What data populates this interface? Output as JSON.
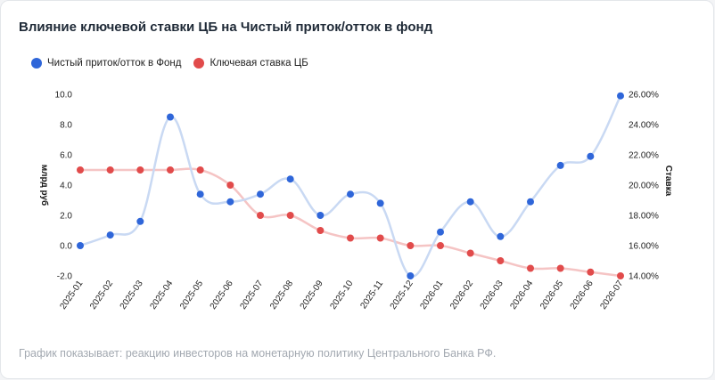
{
  "card": {
    "title": "Влияние ключевой ставки ЦБ на Чистый приток/отток в фонд",
    "footer": "График показывает: реакцию инвесторов на монетарную политику Центрального Банка РФ."
  },
  "colors": {
    "flow": "#2f66d9",
    "flow_line": "#c9d9f3",
    "rate": "#e14b4b",
    "rate_line": "#f5c4c4"
  },
  "chart_data": {
    "type": "line",
    "categories": [
      "2025-01",
      "2025-02",
      "2025-03",
      "2025-04",
      "2025-05",
      "2025-06",
      "2025-07",
      "2025-08",
      "2025-09",
      "2025-10",
      "2025-11",
      "2025-12",
      "2026-01",
      "2026-02",
      "2026-03",
      "2026-04",
      "2026-05",
      "2026-06",
      "2026-07"
    ],
    "series": [
      {
        "name": "Чистый приток/отток в Фонд",
        "axis": "left",
        "values": [
          0.0,
          0.7,
          1.6,
          8.5,
          3.4,
          2.9,
          3.4,
          4.4,
          2.0,
          3.4,
          2.8,
          -2.0,
          0.9,
          2.9,
          0.6,
          2.9,
          5.3,
          5.9,
          9.9
        ]
      },
      {
        "name": "Ключевая ставка ЦБ",
        "axis": "right",
        "values": [
          21.0,
          21.0,
          21.0,
          21.0,
          21.0,
          20.0,
          18.0,
          18.0,
          17.0,
          16.5,
          16.5,
          16.0,
          16.0,
          15.5,
          15.0,
          14.5,
          14.5,
          14.25,
          14.0
        ]
      }
    ],
    "yleft": {
      "label": "млрд руб",
      "ylim": [
        -2,
        10
      ],
      "ticks": [
        "-2.0",
        "0.0",
        "2.0",
        "4.0",
        "6.0",
        "8.0",
        "10.0"
      ]
    },
    "yright": {
      "label": "Ставка",
      "ylim": [
        14,
        26
      ],
      "ticks": [
        "14.00%",
        "16.00%",
        "18.00%",
        "20.00%",
        "22.00%",
        "24.00%",
        "26.00%"
      ]
    },
    "grid": false,
    "legend": "top-left"
  }
}
